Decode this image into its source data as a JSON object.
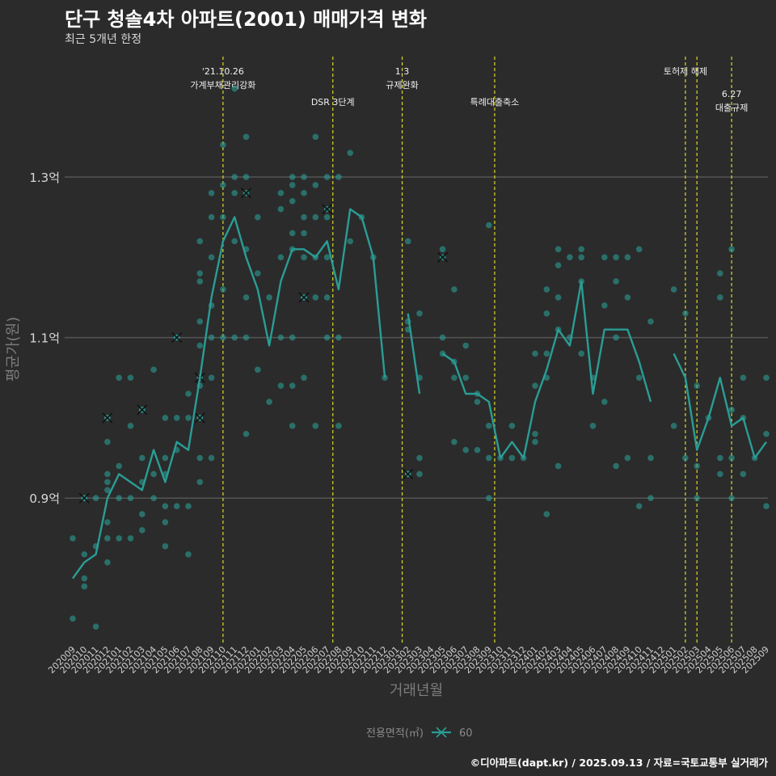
{
  "title": "단구 청솔4차 아파트(2001) 매매가격 변화",
  "subtitle": "최근 5개년 한정",
  "footer": "©디아파트(dapt.kr) / 2025.09.13 / 자료=국토교통부 실거래가",
  "colors": {
    "background": "#2b2b2b",
    "series": "#2a9d95",
    "event_line": "#d9d92a",
    "grid": "#555555"
  },
  "chart_data": {
    "type": "line",
    "xlabel": "거래년월",
    "ylabel": "평균가(원)",
    "ylim": [
      0.72,
      1.45
    ],
    "grid": true,
    "legend_position": "bottom",
    "legend_title": "전용면적(㎡)",
    "y_ticks": [
      {
        "v": 0.9,
        "label": "0.9억"
      },
      {
        "v": 1.1,
        "label": "1.1억"
      },
      {
        "v": 1.3,
        "label": "1.3억"
      }
    ],
    "categories": [
      "202009",
      "202010",
      "202011",
      "202012",
      "202101",
      "202102",
      "202103",
      "202104",
      "202105",
      "202106",
      "202107",
      "202108",
      "202109",
      "202110",
      "202111",
      "202112",
      "202201",
      "202202",
      "202203",
      "202204",
      "202205",
      "202206",
      "202207",
      "202208",
      "202209",
      "202210",
      "202211",
      "202212",
      "202301",
      "202302",
      "202303",
      "202304",
      "202305",
      "202306",
      "202307",
      "202308",
      "202309",
      "202310",
      "202311",
      "202312",
      "202401",
      "202402",
      "202403",
      "202404",
      "202405",
      "202406",
      "202407",
      "202408",
      "202409",
      "202410",
      "202411",
      "202412",
      "202501",
      "202502",
      "202503",
      "202504",
      "202505",
      "202506",
      "202507",
      "202508",
      "202509"
    ],
    "series": [
      {
        "name": "60",
        "values": [
          0.8,
          0.82,
          0.83,
          0.9,
          0.93,
          0.92,
          0.91,
          0.96,
          0.92,
          0.97,
          0.96,
          1.05,
          1.15,
          1.22,
          1.25,
          1.2,
          1.16,
          1.09,
          1.17,
          1.21,
          1.21,
          1.2,
          1.22,
          1.16,
          1.26,
          1.25,
          1.2,
          1.05,
          null,
          1.13,
          1.03,
          null,
          1.08,
          1.07,
          1.03,
          1.03,
          1.02,
          0.95,
          0.97,
          0.95,
          1.02,
          1.06,
          1.11,
          1.09,
          1.17,
          1.03,
          1.11,
          1.11,
          1.11,
          1.07,
          1.02,
          null,
          1.08,
          1.05,
          0.96,
          1.0,
          1.05,
          0.99,
          1.0,
          0.95,
          0.97
        ],
        "points": [
          [
            0,
            0.75
          ],
          [
            0,
            0.85
          ],
          [
            1,
            0.8
          ],
          [
            1,
            0.79
          ],
          [
            1,
            0.83
          ],
          [
            1,
            0.9
          ],
          [
            2,
            0.74
          ],
          [
            2,
            0.84
          ],
          [
            2,
            0.9
          ],
          [
            3,
            0.82
          ],
          [
            3,
            0.85
          ],
          [
            3,
            0.87
          ],
          [
            3,
            0.91
          ],
          [
            3,
            0.92
          ],
          [
            3,
            0.93
          ],
          [
            3,
            0.97
          ],
          [
            3,
            1.0
          ],
          [
            4,
            0.85
          ],
          [
            4,
            0.9
          ],
          [
            4,
            0.94
          ],
          [
            4,
            1.05
          ],
          [
            5,
            0.85
          ],
          [
            5,
            0.9
          ],
          [
            5,
            0.99
          ],
          [
            5,
            1.05
          ],
          [
            6,
            0.86
          ],
          [
            6,
            0.88
          ],
          [
            6,
            0.92
          ],
          [
            6,
            0.95
          ],
          [
            6,
            1.01
          ],
          [
            7,
            0.9
          ],
          [
            7,
            0.93
          ],
          [
            7,
            1.06
          ],
          [
            8,
            0.84
          ],
          [
            8,
            0.87
          ],
          [
            8,
            0.89
          ],
          [
            8,
            0.93
          ],
          [
            8,
            0.95
          ],
          [
            8,
            1.0
          ],
          [
            9,
            0.89
          ],
          [
            9,
            0.96
          ],
          [
            9,
            1.0
          ],
          [
            9,
            1.1
          ],
          [
            10,
            0.83
          ],
          [
            10,
            0.89
          ],
          [
            10,
            1.0
          ],
          [
            10,
            1.03
          ],
          [
            11,
            0.92
          ],
          [
            11,
            0.95
          ],
          [
            11,
            1.0
          ],
          [
            11,
            1.04
          ],
          [
            11,
            1.09
          ],
          [
            11,
            1.12
          ],
          [
            11,
            1.17
          ],
          [
            11,
            1.18
          ],
          [
            11,
            1.22
          ],
          [
            12,
            0.95
          ],
          [
            12,
            1.05
          ],
          [
            12,
            1.1
          ],
          [
            12,
            1.14
          ],
          [
            12,
            1.2
          ],
          [
            12,
            1.25
          ],
          [
            12,
            1.28
          ],
          [
            13,
            1.1
          ],
          [
            13,
            1.16
          ],
          [
            13,
            1.25
          ],
          [
            13,
            1.29
          ],
          [
            13,
            1.34
          ],
          [
            14,
            1.1
          ],
          [
            14,
            1.22
          ],
          [
            14,
            1.28
          ],
          [
            14,
            1.3
          ],
          [
            14,
            1.41
          ],
          [
            15,
            0.98
          ],
          [
            15,
            1.1
          ],
          [
            15,
            1.15
          ],
          [
            15,
            1.21
          ],
          [
            15,
            1.3
          ],
          [
            15,
            1.35
          ],
          [
            16,
            1.06
          ],
          [
            16,
            1.18
          ],
          [
            16,
            1.25
          ],
          [
            17,
            1.02
          ],
          [
            17,
            1.15
          ],
          [
            18,
            1.04
          ],
          [
            18,
            1.1
          ],
          [
            18,
            1.2
          ],
          [
            18,
            1.26
          ],
          [
            18,
            1.28
          ],
          [
            19,
            0.99
          ],
          [
            19,
            1.04
          ],
          [
            19,
            1.1
          ],
          [
            19,
            1.21
          ],
          [
            19,
            1.23
          ],
          [
            19,
            1.27
          ],
          [
            19,
            1.29
          ],
          [
            19,
            1.3
          ],
          [
            20,
            1.05
          ],
          [
            20,
            1.15
          ],
          [
            20,
            1.2
          ],
          [
            20,
            1.23
          ],
          [
            20,
            1.25
          ],
          [
            20,
            1.28
          ],
          [
            20,
            1.3
          ],
          [
            21,
            0.99
          ],
          [
            21,
            1.15
          ],
          [
            21,
            1.2
          ],
          [
            21,
            1.25
          ],
          [
            21,
            1.29
          ],
          [
            21,
            1.35
          ],
          [
            22,
            1.1
          ],
          [
            22,
            1.15
          ],
          [
            22,
            1.2
          ],
          [
            22,
            1.25
          ],
          [
            22,
            1.3
          ],
          [
            23,
            0.99
          ],
          [
            23,
            1.1
          ],
          [
            23,
            1.3
          ],
          [
            24,
            1.22
          ],
          [
            24,
            1.33
          ],
          [
            25,
            1.25
          ],
          [
            26,
            1.2
          ],
          [
            27,
            1.05
          ],
          [
            29,
            0.93
          ],
          [
            29,
            1.11
          ],
          [
            29,
            1.12
          ],
          [
            29,
            1.22
          ],
          [
            30,
            0.93
          ],
          [
            30,
            0.95
          ],
          [
            30,
            1.05
          ],
          [
            30,
            1.13
          ],
          [
            32,
            1.08
          ],
          [
            32,
            1.1
          ],
          [
            32,
            1.21
          ],
          [
            33,
            0.97
          ],
          [
            33,
            1.05
          ],
          [
            33,
            1.07
          ],
          [
            33,
            1.16
          ],
          [
            34,
            0.96
          ],
          [
            34,
            1.05
          ],
          [
            34,
            1.09
          ],
          [
            35,
            0.96
          ],
          [
            35,
            1.02
          ],
          [
            35,
            1.03
          ],
          [
            36,
            0.9
          ],
          [
            36,
            0.95
          ],
          [
            36,
            0.99
          ],
          [
            36,
            1.24
          ],
          [
            37,
            0.95
          ],
          [
            38,
            0.95
          ],
          [
            38,
            0.99
          ],
          [
            39,
            0.95
          ],
          [
            40,
            0.97
          ],
          [
            40,
            0.98
          ],
          [
            40,
            1.04
          ],
          [
            40,
            1.08
          ],
          [
            41,
            0.88
          ],
          [
            41,
            1.05
          ],
          [
            41,
            1.08
          ],
          [
            41,
            1.13
          ],
          [
            41,
            1.16
          ],
          [
            42,
            0.94
          ],
          [
            42,
            1.11
          ],
          [
            42,
            1.15
          ],
          [
            42,
            1.19
          ],
          [
            42,
            1.21
          ],
          [
            43,
            1.1
          ],
          [
            43,
            1.2
          ],
          [
            44,
            1.08
          ],
          [
            44,
            1.17
          ],
          [
            44,
            1.2
          ],
          [
            44,
            1.21
          ],
          [
            45,
            0.99
          ],
          [
            45,
            1.05
          ],
          [
            46,
            1.02
          ],
          [
            46,
            1.14
          ],
          [
            46,
            1.2
          ],
          [
            47,
            0.94
          ],
          [
            47,
            1.1
          ],
          [
            47,
            1.17
          ],
          [
            47,
            1.2
          ],
          [
            48,
            0.95
          ],
          [
            48,
            1.15
          ],
          [
            48,
            1.2
          ],
          [
            49,
            0.89
          ],
          [
            49,
            1.05
          ],
          [
            49,
            1.21
          ],
          [
            50,
            0.9
          ],
          [
            50,
            0.95
          ],
          [
            50,
            1.12
          ],
          [
            52,
            0.99
          ],
          [
            52,
            1.16
          ],
          [
            53,
            0.95
          ],
          [
            53,
            1.13
          ],
          [
            54,
            0.9
          ],
          [
            54,
            0.94
          ],
          [
            54,
            1.04
          ],
          [
            55,
            1.0
          ],
          [
            56,
            0.93
          ],
          [
            56,
            0.95
          ],
          [
            56,
            1.15
          ],
          [
            56,
            1.18
          ],
          [
            57,
            0.9
          ],
          [
            57,
            0.95
          ],
          [
            57,
            1.01
          ],
          [
            57,
            1.21
          ],
          [
            58,
            0.93
          ],
          [
            58,
            1.0
          ],
          [
            58,
            1.05
          ],
          [
            59,
            0.95
          ],
          [
            60,
            0.89
          ],
          [
            60,
            0.98
          ],
          [
            60,
            1.05
          ]
        ],
        "marks": [
          [
            1,
            0.9
          ],
          [
            3,
            1.0
          ],
          [
            6,
            1.01
          ],
          [
            9,
            1.1
          ],
          [
            11,
            1.0
          ],
          [
            11,
            1.05
          ],
          [
            15,
            1.28
          ],
          [
            20,
            1.15
          ],
          [
            22,
            1.26
          ],
          [
            29,
            0.93
          ],
          [
            32,
            1.2
          ]
        ]
      }
    ],
    "annotations": [
      {
        "x": 13.0,
        "text": "'21.10.26\n가계부채관리강화",
        "row": 1
      },
      {
        "x": 22.5,
        "text": "DSR 3단계",
        "row": 2
      },
      {
        "x": 28.5,
        "text": "1.3\n규제완화",
        "row": 1
      },
      {
        "x": 36.5,
        "text": "특례대출축소",
        "row": 2
      },
      {
        "x": 53.0,
        "text": "토허제 해제",
        "row": 1,
        "no_line": true
      },
      {
        "x": 53.0,
        "text": "",
        "row": 1,
        "line_only": true
      },
      {
        "x": 54.0,
        "text": "",
        "row": 1,
        "line_only": true
      },
      {
        "x": 57.0,
        "text": "6.27\n대출규제",
        "row": 3
      }
    ]
  }
}
